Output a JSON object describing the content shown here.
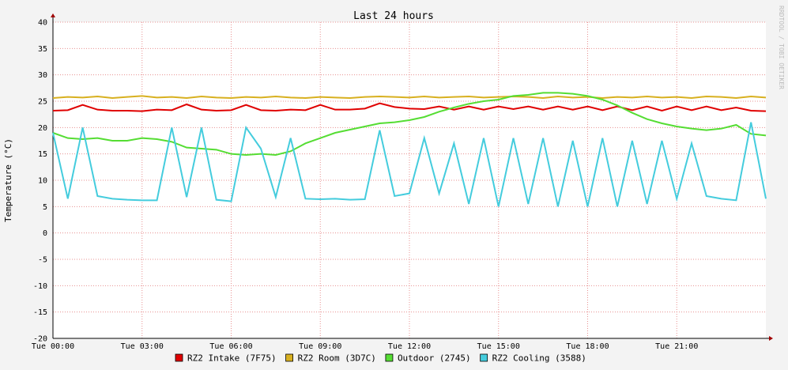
{
  "chart_data": {
    "type": "line",
    "title": "Last 24 hours",
    "y_label": "Temperature (°C)",
    "watermark": "RRDTOOL / TOBI OETIKER",
    "x": [
      0,
      0.5,
      1,
      1.5,
      2,
      2.5,
      3,
      3.5,
      4,
      4.5,
      5,
      5.5,
      6,
      6.5,
      7,
      7.5,
      8,
      8.5,
      9,
      9.5,
      10,
      10.5,
      11,
      11.5,
      12,
      12.5,
      13,
      13.5,
      14,
      14.5,
      15,
      15.5,
      16,
      16.5,
      17,
      17.5,
      18,
      18.5,
      19,
      19.5,
      20,
      20.5,
      21,
      21.5,
      22,
      22.5,
      23,
      23.5,
      24
    ],
    "xlim": [
      0,
      24
    ],
    "xticks": [
      {
        "value": 0,
        "label": "Tue 00:00"
      },
      {
        "value": 3,
        "label": "Tue 03:00"
      },
      {
        "value": 6,
        "label": "Tue 06:00"
      },
      {
        "value": 9,
        "label": "Tue 09:00"
      },
      {
        "value": 12,
        "label": "Tue 12:00"
      },
      {
        "value": 15,
        "label": "Tue 15:00"
      },
      {
        "value": 18,
        "label": "Tue 18:00"
      },
      {
        "value": 21,
        "label": "Tue 21:00"
      }
    ],
    "ylim": [
      -20,
      40
    ],
    "yticks": [
      -20,
      -15,
      -10,
      -5,
      0,
      5,
      10,
      15,
      20,
      25,
      30,
      35,
      40
    ],
    "grid": true,
    "series": [
      {
        "name": "RZ2 Intake (7F75)",
        "color": "#e00000",
        "values": [
          23.2,
          23.3,
          24.3,
          23.4,
          23.2,
          23.2,
          23.1,
          23.4,
          23.3,
          24.4,
          23.4,
          23.2,
          23.3,
          24.3,
          23.3,
          23.2,
          23.4,
          23.3,
          24.3,
          23.4,
          23.4,
          23.6,
          24.6,
          23.9,
          23.6,
          23.5,
          24.0,
          23.4,
          24.0,
          23.4,
          24.0,
          23.5,
          24.0,
          23.4,
          24.0,
          23.4,
          24.0,
          23.3,
          24.0,
          23.3,
          24.0,
          23.2,
          24.0,
          23.3,
          24.0,
          23.3,
          23.8,
          23.2,
          23.1
        ]
      },
      {
        "name": "RZ2 Room (3D7C)",
        "color": "#d8b020",
        "values": [
          25.6,
          25.8,
          25.7,
          25.9,
          25.6,
          25.8,
          26.0,
          25.7,
          25.8,
          25.6,
          25.9,
          25.7,
          25.6,
          25.8,
          25.7,
          25.9,
          25.7,
          25.6,
          25.8,
          25.7,
          25.6,
          25.8,
          25.9,
          25.8,
          25.7,
          25.9,
          25.7,
          25.8,
          25.9,
          25.7,
          25.8,
          25.9,
          25.8,
          25.6,
          25.9,
          25.7,
          25.8,
          25.6,
          25.8,
          25.7,
          25.9,
          25.7,
          25.8,
          25.6,
          25.9,
          25.8,
          25.6,
          25.9,
          25.7
        ]
      },
      {
        "name": "Outdoor (2745)",
        "color": "#55dd33",
        "values": [
          19,
          18,
          17.8,
          18,
          17.5,
          17.5,
          18,
          17.8,
          17.3,
          16.2,
          16,
          15.8,
          15,
          14.8,
          15,
          14.8,
          15.5,
          17,
          18,
          19,
          19.6,
          20.2,
          20.8,
          21,
          21.4,
          22,
          23,
          23.8,
          24.5,
          25,
          25.3,
          26,
          26.2,
          26.6,
          26.6,
          26.4,
          26,
          25.3,
          24.2,
          22.8,
          21.6,
          20.8,
          20.2,
          19.8,
          19.5,
          19.8,
          20.5,
          18.8,
          18.5
        ]
      },
      {
        "name": "RZ2 Cooling (3588)",
        "color": "#44ccdd",
        "values": [
          19,
          6.5,
          20,
          7,
          6.5,
          6.3,
          6.2,
          6.2,
          20,
          6.8,
          20,
          6.3,
          6,
          20,
          16,
          6.8,
          18,
          6.5,
          6.4,
          6.5,
          6.3,
          6.4,
          19.5,
          7,
          7.5,
          18,
          7.5,
          17,
          5.5,
          18,
          5,
          18,
          5.5,
          18,
          5,
          17.5,
          5,
          18,
          5,
          17.5,
          5.5,
          17.5,
          6.5,
          17,
          7,
          6.5,
          6.2,
          21,
          6.5
        ]
      }
    ]
  }
}
